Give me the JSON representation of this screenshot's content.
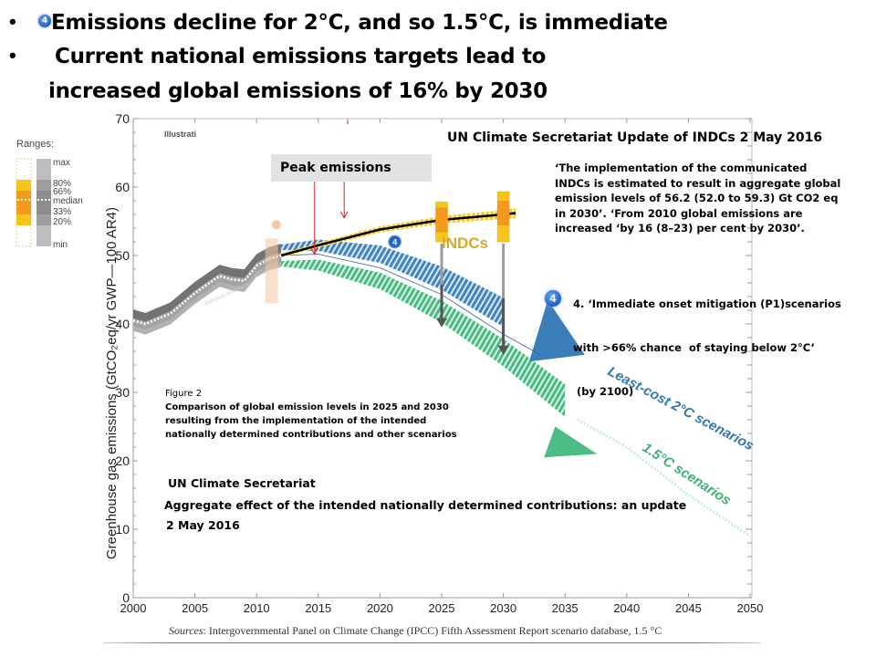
{
  "slide": {
    "bullets": [
      {
        "badge": "4",
        "text": "Emissions decline for 2°C, and so 1.5°C, is immediate"
      },
      {
        "text": "Current national emissions targets lead to"
      },
      {
        "text": "increased  global emissions  of 16% by 2030"
      }
    ],
    "bullet_symbol": "•"
  },
  "legend": {
    "title": "Ranges:",
    "labels": [
      "max",
      "80%",
      "66%",
      "median",
      "33%",
      "20%",
      "min"
    ]
  },
  "annotations": {
    "illustration_label": "Illustrati",
    "peak_emissions": "Peak emissions",
    "un_update_title": "UN Climate Secretariat Update of INDCs 2 May 2016",
    "un_quote_lines": [
      "‘The implementation of the communicated",
      "INDCs is estimated to result in aggregate global",
      "emission levels  of 56.2 (52.0 to 59.3) Gt CO2 eq",
      "in 2030’. ‘From 2010 global emissions are",
      "increased ‘by 16 (8–23) per cent by 2030’."
    ],
    "mitigation_badge": "4",
    "mitigation_lines": [
      "4. ‘Immediate onset mitigation (P1)scenarios",
      "with >66% chance  of staying below 2°C’",
      " (by 2100)"
    ],
    "figure_caption": {
      "label": "Figure 2",
      "lines": [
        "Comparison of global emission levels in 2025 and 2030",
        "resulting from the implementation of the intended",
        "nationally determined contributions and other scenarios"
      ]
    },
    "un_source": {
      "org": "UN Climate Secretariat",
      "title": "Aggregate effect of the intended nationally determined contributions: an update",
      "date": "2 May 2016"
    },
    "sources_prefix": "Sources",
    "sources_text": ": Intergovernmental Panel on Climate Change (IPCC) Fifth Assessment Report scenario database, 1.5 °C"
  },
  "chart_data": {
    "type": "area",
    "title": "",
    "xlabel": "",
    "ylabel": "Greenhouse gas emissions (GtCO₂eq/yr GWP—100 AR4)",
    "xlim": [
      2000,
      2050
    ],
    "ylim": [
      0,
      70
    ],
    "xticks": [
      2000,
      2005,
      2010,
      2015,
      2020,
      2025,
      2030,
      2035,
      2040,
      2045,
      2050
    ],
    "yticks": [
      0,
      10,
      20,
      30,
      40,
      50,
      60,
      70
    ],
    "series": [
      {
        "name": "Historical emissions",
        "color": "#8a8a8a",
        "x": [
          2000,
          2001,
          2003,
          2005,
          2007,
          2008,
          2009,
          2010,
          2011,
          2012
        ],
        "y": [
          40.5,
          40,
          41.5,
          44.5,
          47,
          46.5,
          46.3,
          48.5,
          49.5,
          50
        ]
      },
      {
        "name": "INDCs",
        "color": "#f5c518",
        "x": [
          2012,
          2015,
          2020,
          2025,
          2030,
          2031
        ],
        "y": [
          50,
          51.5,
          53.8,
          55.2,
          56,
          56.2
        ],
        "label_badges": [
          "4"
        ]
      },
      {
        "name": "Least-cost 2°C scenarios",
        "color": "#3a7fb8",
        "x": [
          2012,
          2015,
          2020,
          2025,
          2030,
          2035
        ],
        "y": [
          50,
          50.3,
          49,
          45.5,
          40.5,
          34
        ]
      },
      {
        "name": "1.5°C scenarios",
        "color": "#3db87a",
        "x": [
          2012,
          2015,
          2020,
          2025,
          2030,
          2035,
          2040,
          2045,
          2050
        ],
        "y": [
          50,
          49.8,
          47.5,
          43,
          37,
          30,
          23,
          16,
          9
        ]
      }
    ],
    "indc_ranges": [
      {
        "year": 2025,
        "median": 55.2,
        "low": 52.0,
        "high": 57.8
      },
      {
        "year": 2030,
        "median": 56.2,
        "low": 52.0,
        "high": 59.3
      }
    ],
    "series_labels": [
      "Historical emissions",
      "INDCs",
      "Least-cost 2°C scenarios",
      "1.5°C scenarios"
    ]
  }
}
